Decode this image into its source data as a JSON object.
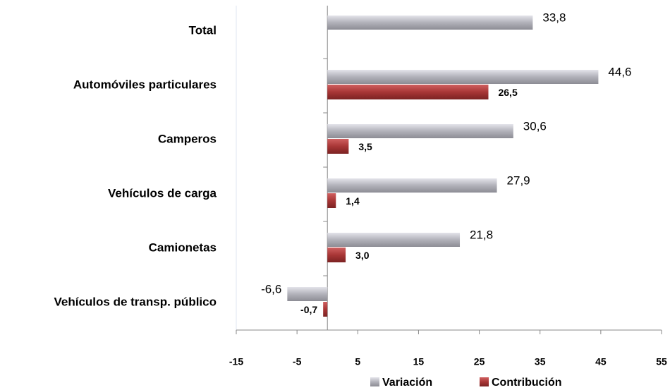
{
  "chart_data": {
    "type": "bar",
    "orientation": "horizontal",
    "categories": [
      "Total",
      "Automóviles particulares",
      "Camperos",
      "Vehículos de carga",
      "Camionetas",
      "Vehículos de transp. público"
    ],
    "series": [
      {
        "name": "Variación",
        "color": "#b2b2ba",
        "values": [
          33.8,
          44.6,
          30.6,
          27.9,
          21.8,
          -6.6
        ],
        "value_labels": [
          "33,8",
          "44,6",
          "30,6",
          "27,9",
          "21,8",
          "-6,6"
        ]
      },
      {
        "name": "Contribución",
        "color": "#a83636",
        "values": [
          null,
          26.5,
          3.5,
          1.4,
          3.0,
          -0.7
        ],
        "value_labels": [
          null,
          "26,5",
          "3,5",
          "1,4",
          "3,0",
          "-0,7"
        ]
      }
    ],
    "xlim": [
      -15,
      55
    ],
    "xticks": [
      -15,
      -5,
      5,
      15,
      25,
      35,
      45,
      55
    ],
    "legend": "bottom"
  }
}
